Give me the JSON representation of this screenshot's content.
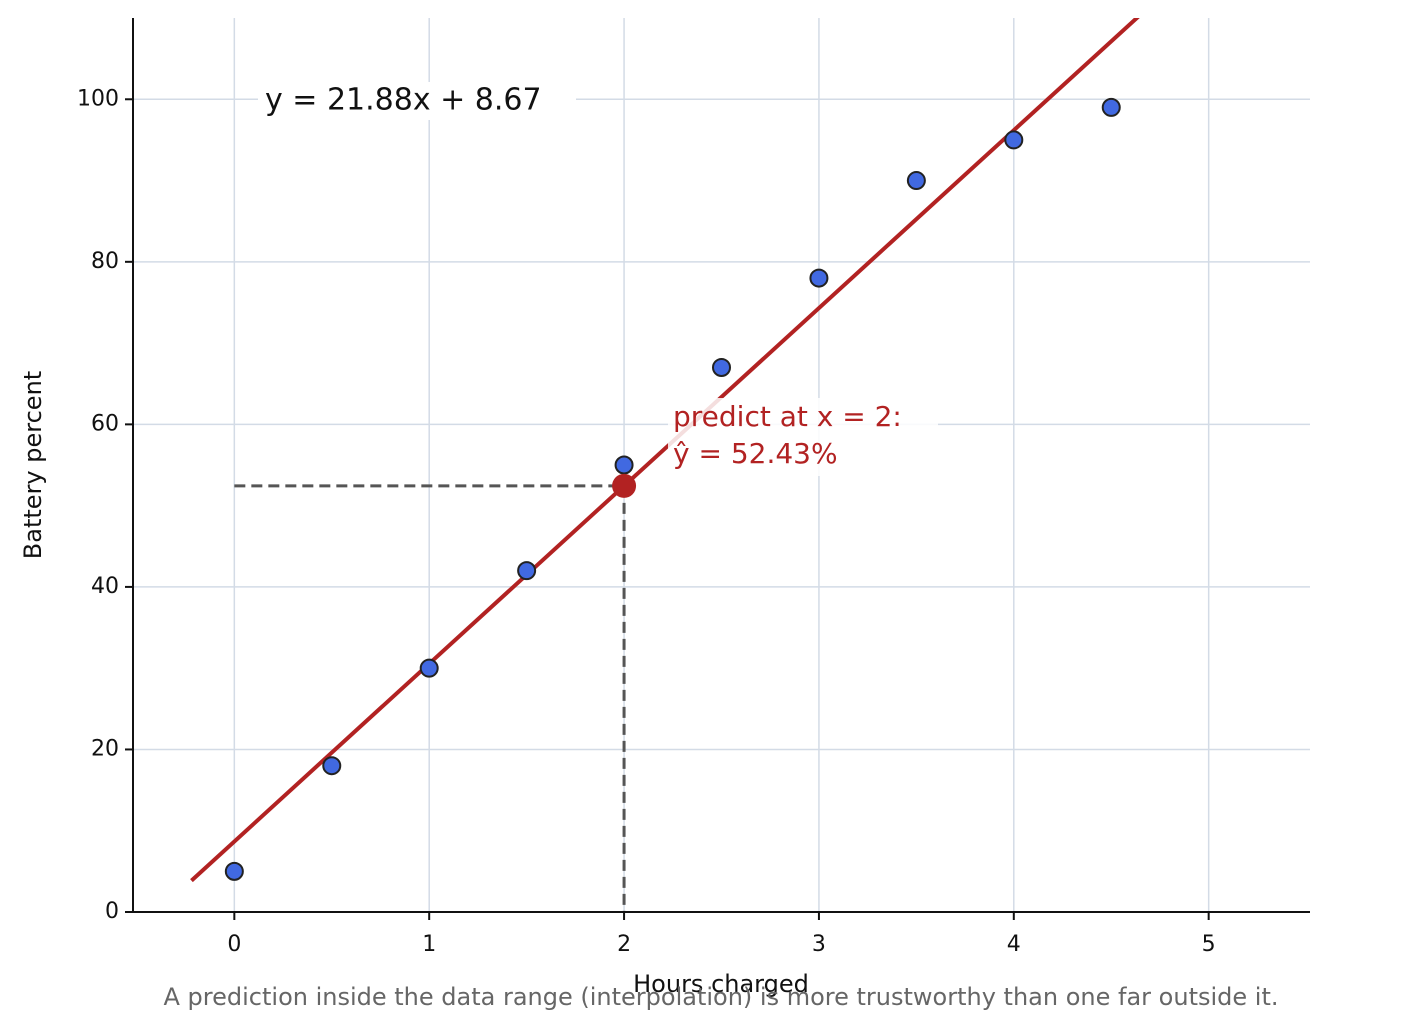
{
  "chart_data": {
    "type": "scatter",
    "x_label": "Hours charged",
    "y_label": "Battery percent",
    "caption": "A prediction inside the data range (interpolation) is more trustworthy than one far outside it.",
    "xlim": [
      -0.52,
      5.52
    ],
    "ylim": [
      0,
      110
    ],
    "xticks": [
      0,
      1,
      2,
      3,
      4,
      5
    ],
    "yticks": [
      0,
      20,
      40,
      60,
      80,
      100
    ],
    "grid": true,
    "x": [
      0,
      0.5,
      1,
      1.5,
      2,
      2.5,
      3,
      3.5,
      4,
      4.5
    ],
    "values": [
      5,
      18,
      30,
      42,
      55,
      67,
      78,
      90,
      95,
      99
    ],
    "color": "#4169e1",
    "fit_line": {
      "color": "#b22222",
      "x": [
        -0.22,
        4.64
      ],
      "values": [
        3.86,
        110.19
      ],
      "label": "y = 21.88x + 8.67"
    },
    "prediction": {
      "x": 2,
      "value": 52.43,
      "color": "#b22222",
      "label_lines": [
        "predict at x = 2:",
        "ŷ = 52.43%"
      ]
    }
  }
}
